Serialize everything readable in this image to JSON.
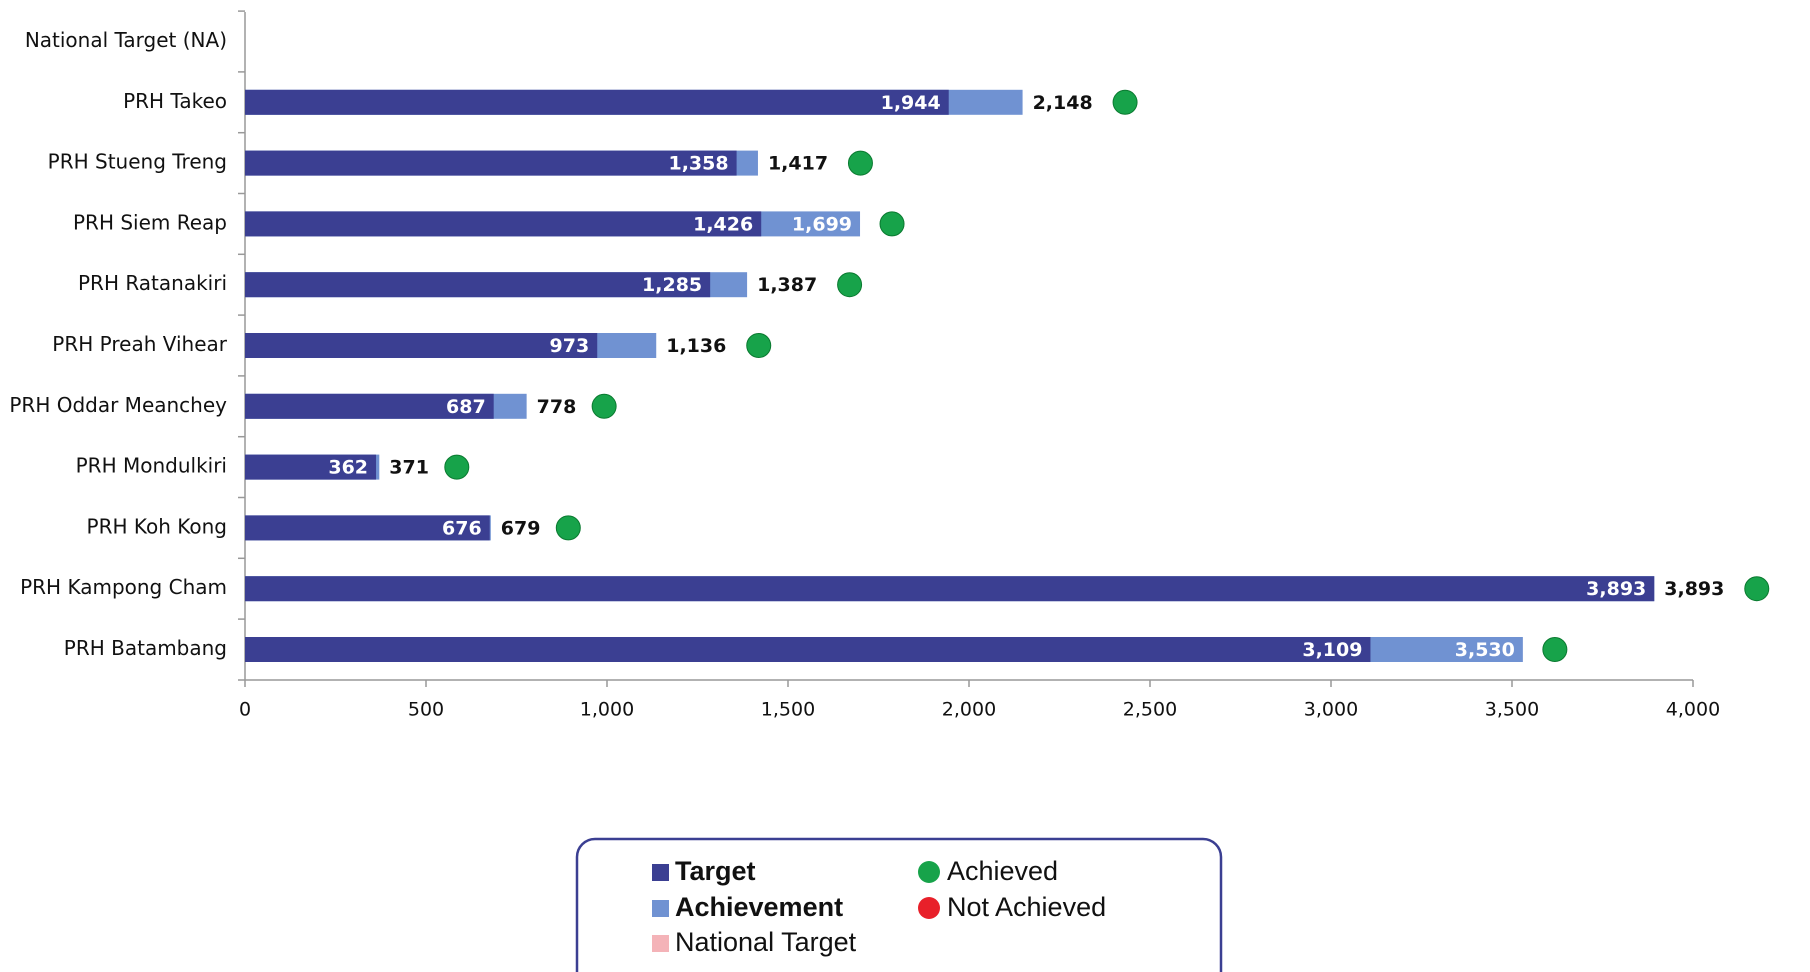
{
  "chart_data": {
    "type": "bar",
    "orientation": "horizontal",
    "categories": [
      "National Target (NA)",
      "PRH Takeo",
      "PRH Stueng Treng",
      "PRH Siem Reap",
      "PRH Ratanakiri",
      "PRH Preah Vihear",
      "PRH Oddar Meanchey",
      "PRH Mondulkiri",
      "PRH Koh Kong",
      "PRH Kampong Cham",
      "PRH Batambang"
    ],
    "series": [
      {
        "name": "Target",
        "color": "#3b3f92",
        "values": [
          null,
          1944,
          1358,
          1426,
          1285,
          973,
          687,
          362,
          676,
          3893,
          3109
        ],
        "value_labels": [
          null,
          "1,944",
          "1,358",
          "1,426",
          "1,285",
          "973",
          "687",
          "362",
          "676",
          "3,893",
          "3,109"
        ]
      },
      {
        "name": "Achievement",
        "color": "#7092d2",
        "values": [
          null,
          2148,
          1417,
          1699,
          1387,
          1136,
          778,
          371,
          679,
          3893,
          3530
        ],
        "value_labels": [
          null,
          "2,148",
          "1,417",
          "1,699",
          "1,387",
          "1,136",
          "778",
          "371",
          "679",
          "3,893",
          "3,530"
        ]
      },
      {
        "name": "National Target",
        "color": "#f4b3b8",
        "values": [
          null,
          null,
          null,
          null,
          null,
          null,
          null,
          null,
          null,
          null,
          null
        ]
      }
    ],
    "status": [
      null,
      "Achieved",
      "Achieved",
      "Achieved",
      "Achieved",
      "Achieved",
      "Achieved",
      "Achieved",
      "Achieved",
      "Achieved",
      "Achieved"
    ],
    "status_legend": [
      {
        "name": "Achieved",
        "color": "#17a34a"
      },
      {
        "name": "Not Achieved",
        "color": "#e8202a"
      }
    ],
    "xlim": [
      0,
      4000
    ],
    "xticks": [
      0,
      500,
      {
        "value": 1000,
        "label": "1,000"
      },
      {
        "value": 1500,
        "label": "1,500"
      },
      {
        "value": 2000,
        "label": "2,000"
      },
      {
        "value": 2500,
        "label": "2,500"
      },
      {
        "value": 3000,
        "label": "3,000"
      },
      {
        "value": 3500,
        "label": "3,500"
      },
      {
        "value": 4000,
        "label": "4,000"
      }
    ],
    "overlap": true
  }
}
